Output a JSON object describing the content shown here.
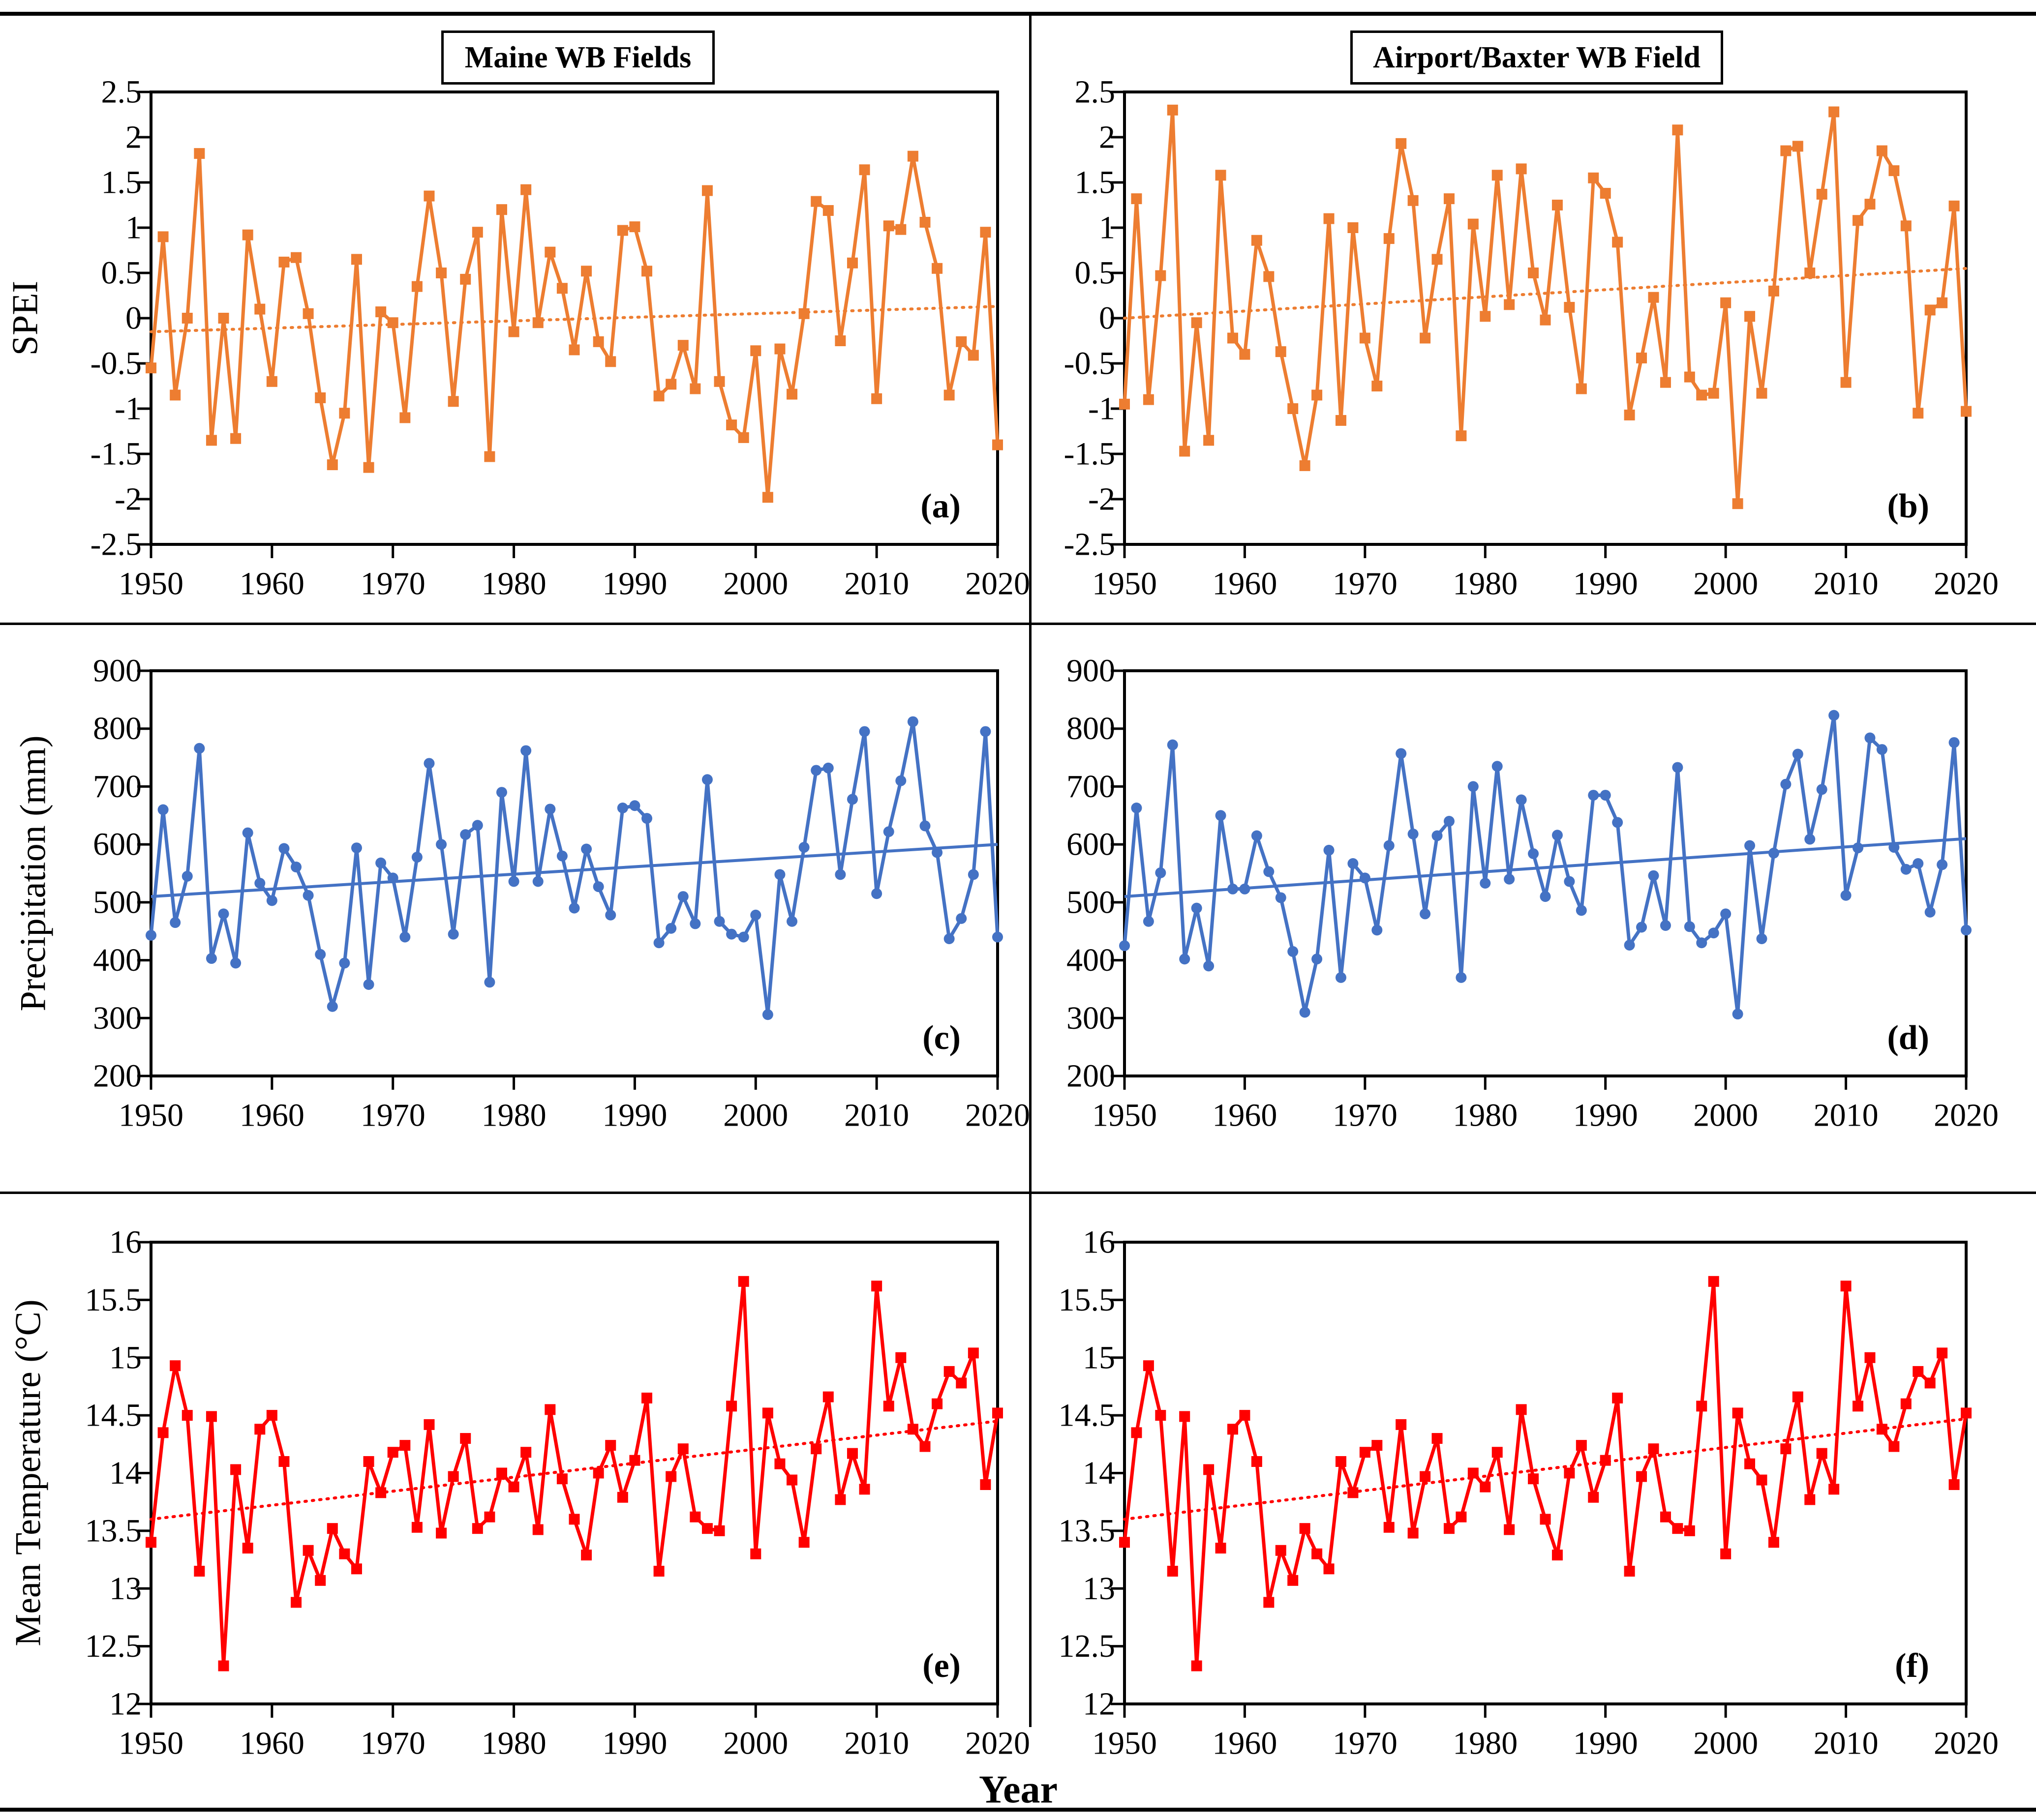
{
  "header": {
    "left_title": "Maine WB Fields",
    "right_title": "Airport/Baxter WB Field"
  },
  "axis_labels": {
    "row1": "SPEI",
    "row2": "Precipitation (mm)",
    "row3": "Mean Temperature (°C)",
    "x": "Year"
  },
  "chart_data": [
    {
      "id": "a",
      "type": "line",
      "panel_label": "(a)",
      "series_name": "SPEI - Maine WB Fields",
      "color": "#ED7D31",
      "marker": "square",
      "trend": {
        "style": "dotted",
        "start": -0.15,
        "end": 0.13
      },
      "ylim": [
        -2.5,
        2.5
      ],
      "ytick_step": 0.5,
      "x_start": 1950,
      "x_end": 2020,
      "xticks": [
        1950,
        1960,
        1970,
        1980,
        1990,
        2000,
        2010,
        2020
      ],
      "values": [
        -0.55,
        0.9,
        -0.85,
        0,
        1.82,
        -1.35,
        0,
        -1.33,
        0.92,
        0.1,
        -0.7,
        0.62,
        0.67,
        0.05,
        -0.88,
        -1.62,
        -1.05,
        0.65,
        -1.65,
        0.07,
        -0.05,
        -1.1,
        0.35,
        1.35,
        0.5,
        -0.92,
        0.43,
        0.95,
        -1.53,
        1.2,
        -0.15,
        1.42,
        -0.05,
        0.73,
        0.33,
        -0.35,
        0.52,
        -0.26,
        -0.48,
        0.97,
        1.01,
        0.52,
        -0.86,
        -0.73,
        -0.3,
        -0.78,
        1.41,
        -0.7,
        -1.18,
        -1.32,
        -0.36,
        -1.98,
        -0.34,
        -0.84,
        0.05,
        1.29,
        1.19,
        -0.25,
        0.61,
        1.64,
        -0.89,
        1.02,
        0.98,
        1.79,
        1.06,
        0.55,
        -0.85,
        -0.26,
        -0.41,
        0.95,
        -1.4
      ]
    },
    {
      "id": "b",
      "type": "line",
      "panel_label": "(b)",
      "series_name": "SPEI - Airport/Baxter WB Field",
      "color": "#ED7D31",
      "marker": "square",
      "trend": {
        "style": "dotted",
        "start": 0.0,
        "end": 0.55
      },
      "ylim": [
        -2.5,
        2.5
      ],
      "ytick_step": 0.5,
      "x_start": 1950,
      "x_end": 2020,
      "xticks": [
        1950,
        1960,
        1970,
        1980,
        1990,
        2000,
        2010,
        2020
      ],
      "values": [
        -0.95,
        1.32,
        -0.9,
        0.47,
        2.3,
        -1.47,
        -0.05,
        -1.35,
        1.58,
        -0.22,
        -0.4,
        0.86,
        0.46,
        -0.37,
        -1,
        -1.63,
        -0.85,
        1.1,
        -1.13,
        1,
        -0.22,
        -0.75,
        0.88,
        1.93,
        1.3,
        -0.22,
        0.65,
        1.32,
        -1.3,
        1.04,
        0.02,
        1.58,
        0.15,
        1.65,
        0.5,
        -0.02,
        1.25,
        0.12,
        -0.78,
        1.55,
        1.38,
        0.84,
        -1.07,
        -0.44,
        0.23,
        -0.71,
        2.08,
        -0.65,
        -0.85,
        -0.83,
        0.17,
        -2.05,
        0.02,
        -0.83,
        0.3,
        1.85,
        1.9,
        0.5,
        1.37,
        2.28,
        -0.71,
        1.08,
        1.26,
        1.85,
        1.63,
        1.02,
        -1.05,
        0.09,
        0.17,
        1.24,
        -1.03
      ]
    },
    {
      "id": "c",
      "type": "line",
      "panel_label": "(c)",
      "series_name": "Precipitation - Maine WB Fields",
      "color": "#4472C4",
      "marker": "circle",
      "trend": {
        "style": "solid",
        "start": 510,
        "end": 600
      },
      "ylim": [
        200,
        900
      ],
      "ytick_step": 100,
      "x_start": 1950,
      "x_end": 2020,
      "xticks": [
        1950,
        1960,
        1970,
        1980,
        1990,
        2000,
        2010,
        2020
      ],
      "values": [
        443,
        660,
        465,
        545,
        766,
        403,
        480,
        395,
        620,
        533,
        503,
        593,
        561,
        512,
        410,
        320,
        395,
        594,
        358,
        568,
        542,
        440,
        578,
        740,
        600,
        445,
        617,
        633,
        362,
        690,
        536,
        762,
        536,
        661,
        580,
        490,
        592,
        527,
        478,
        663,
        667,
        645,
        430,
        455,
        510,
        463,
        712,
        467,
        445,
        440,
        478,
        306,
        548,
        467,
        595,
        728,
        732,
        548,
        678,
        795,
        515,
        622,
        710,
        812,
        632,
        586,
        437,
        472,
        548,
        795,
        440
      ]
    },
    {
      "id": "d",
      "type": "line",
      "panel_label": "(d)",
      "series_name": "Precipitation - Airport/Baxter WB Field",
      "color": "#4472C4",
      "marker": "circle",
      "trend": {
        "style": "solid",
        "start": 510,
        "end": 610
      },
      "ylim": [
        200,
        900
      ],
      "ytick_step": 100,
      "x_start": 1950,
      "x_end": 2020,
      "xticks": [
        1950,
        1960,
        1970,
        1980,
        1990,
        2000,
        2010,
        2020
      ],
      "values": [
        425,
        663,
        467,
        551,
        772,
        402,
        490,
        390,
        650,
        523,
        523,
        615,
        553,
        508,
        415,
        310,
        402,
        590,
        370,
        567,
        542,
        452,
        598,
        757,
        618,
        480,
        615,
        640,
        370,
        700,
        533,
        735,
        540,
        677,
        584,
        510,
        616,
        536,
        486,
        685,
        685,
        638,
        426,
        457,
        546,
        460,
        733,
        458,
        430,
        447,
        480,
        307,
        598,
        437,
        585,
        704,
        756,
        609,
        695,
        823,
        512,
        594,
        784,
        764,
        595,
        557,
        567,
        483,
        565,
        776,
        452
      ]
    },
    {
      "id": "e",
      "type": "line",
      "panel_label": "(e)",
      "series_name": "Mean Temperature - Maine WB Fields",
      "color": "#FF0000",
      "marker": "square",
      "trend": {
        "style": "dotted",
        "start": 13.6,
        "end": 14.45
      },
      "ylim": [
        12,
        16
      ],
      "ytick_step": 0.5,
      "x_start": 1950,
      "x_end": 2020,
      "xticks": [
        1950,
        1960,
        1970,
        1980,
        1990,
        2000,
        2010,
        2020
      ],
      "values": [
        13.4,
        14.35,
        14.93,
        14.5,
        13.15,
        14.49,
        12.33,
        14.03,
        13.35,
        14.38,
        14.5,
        14.1,
        12.88,
        13.33,
        13.07,
        13.52,
        13.3,
        13.17,
        14.1,
        13.83,
        14.18,
        14.24,
        13.53,
        14.42,
        13.48,
        13.97,
        14.3,
        13.52,
        13.62,
        14,
        13.88,
        14.18,
        13.51,
        14.55,
        13.95,
        13.6,
        13.29,
        14,
        14.24,
        13.79,
        14.11,
        14.65,
        13.15,
        13.97,
        14.21,
        13.62,
        13.52,
        13.5,
        14.58,
        15.66,
        13.3,
        14.52,
        14.08,
        13.94,
        13.4,
        14.21,
        14.66,
        13.77,
        14.17,
        13.86,
        15.62,
        14.58,
        15,
        14.38,
        14.23,
        14.6,
        14.88,
        14.78,
        15.04,
        13.9,
        14.52
      ]
    },
    {
      "id": "f",
      "type": "line",
      "panel_label": "(f)",
      "series_name": "Mean Temperature - Airport/Baxter WB Field",
      "color": "#FF0000",
      "marker": "square",
      "trend": {
        "style": "dotted",
        "start": 13.6,
        "end": 14.47
      },
      "ylim": [
        12,
        16
      ],
      "ytick_step": 0.5,
      "x_start": 1950,
      "x_end": 2020,
      "xticks": [
        1950,
        1960,
        1970,
        1980,
        1990,
        2000,
        2010,
        2020
      ],
      "values": [
        13.4,
        14.35,
        14.93,
        14.5,
        13.15,
        14.49,
        12.33,
        14.03,
        13.35,
        14.38,
        14.5,
        14.1,
        12.88,
        13.33,
        13.07,
        13.52,
        13.3,
        13.17,
        14.1,
        13.83,
        14.18,
        14.24,
        13.53,
        14.42,
        13.48,
        13.97,
        14.3,
        13.52,
        13.62,
        14,
        13.88,
        14.18,
        13.51,
        14.55,
        13.95,
        13.6,
        13.29,
        14,
        14.24,
        13.79,
        14.11,
        14.65,
        13.15,
        13.97,
        14.21,
        13.62,
        13.52,
        13.5,
        14.58,
        15.66,
        13.3,
        14.52,
        14.08,
        13.94,
        13.4,
        14.21,
        14.66,
        13.77,
        14.17,
        13.86,
        15.62,
        14.58,
        15,
        14.38,
        14.23,
        14.6,
        14.88,
        14.78,
        15.04,
        13.9,
        14.52
      ]
    }
  ]
}
